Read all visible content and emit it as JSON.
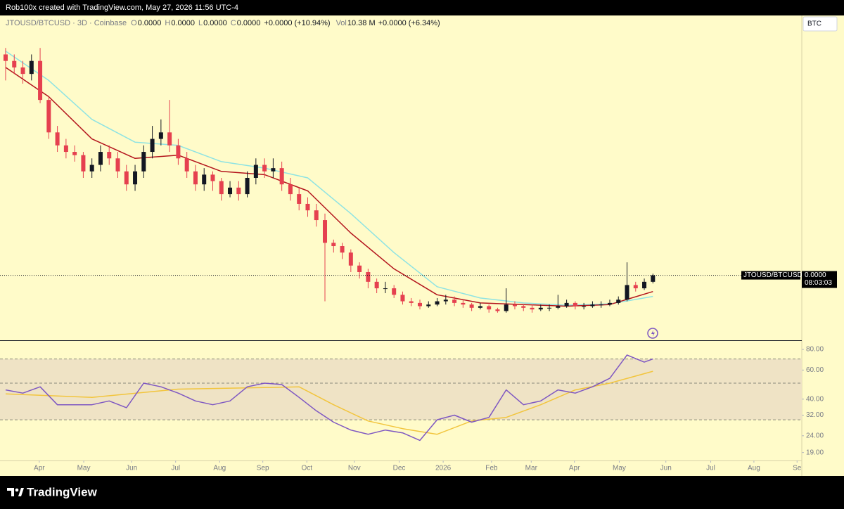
{
  "header": {
    "credit": "Rob100x created with TradingView.com, May 27, 2026 11:56 UTC-4"
  },
  "chart_data": [
    {
      "type": "candlestick",
      "title": "JTOUSD/BTCUSD · 3D · Coinbase",
      "ohlc_labels": [
        "O",
        "H",
        "L",
        "C"
      ],
      "ohlc_values": [
        "0.0000",
        "0.0000",
        "0.0000",
        "0.0000"
      ],
      "change": "+0.0000 (+10.94%)",
      "volume_label": "Vol",
      "volume": "10.38 M",
      "volume_change": "+0.0000 (+6.34%)",
      "currency": "BTC",
      "last_symbol": "JTOUSD/BTCUSD",
      "last_price": "0.0000",
      "countdown": "08:03:03",
      "up_color": "#131722",
      "down_color": "#e5404f",
      "xlim": [
        -0.65,
        92.25
      ],
      "ylim": [
        0,
        100
      ],
      "open": [
        88,
        86,
        84,
        82,
        86,
        74,
        64,
        60,
        58,
        57,
        52,
        54,
        58,
        56,
        52,
        48,
        52,
        58,
        62,
        64,
        60,
        56,
        52,
        48,
        51,
        49,
        45,
        47,
        45,
        50,
        54,
        52,
        53,
        48,
        45,
        42,
        40,
        37,
        30,
        29,
        27,
        23,
        21,
        18,
        16,
        16,
        14,
        12,
        11.5,
        10.5,
        11,
        12,
        12.5,
        11.5,
        11,
        10,
        10.5,
        9.5,
        9,
        11,
        10.5,
        10,
        9.5,
        10,
        10,
        10.5,
        11.5,
        10.5,
        10.5,
        11,
        11,
        11.5,
        12.5,
        17,
        16,
        18
      ],
      "high": [
        90,
        88,
        86,
        88,
        90,
        75,
        66,
        62,
        60,
        58,
        56,
        60,
        60,
        58,
        54,
        54,
        60,
        66,
        68,
        74,
        62,
        58,
        54,
        53,
        52,
        50,
        49,
        49,
        52,
        56,
        56,
        56,
        55,
        50,
        47,
        44,
        42,
        39,
        31,
        30,
        28,
        24,
        22,
        19,
        18,
        17,
        15,
        13,
        12.5,
        12,
        13,
        14,
        13.5,
        12.5,
        11.5,
        11.5,
        11,
        10,
        16,
        12,
        11,
        11,
        11,
        11,
        14,
        12.5,
        12,
        11.5,
        12,
        12,
        12.5,
        13.5,
        24,
        18,
        19,
        20.5
      ],
      "low": [
        80,
        82,
        79,
        80,
        73,
        62,
        58,
        56,
        55,
        50,
        50,
        52,
        54,
        50,
        46,
        46,
        50,
        56,
        60,
        58,
        54,
        50,
        46,
        46,
        46,
        43,
        44,
        43,
        44,
        48,
        50,
        50,
        46,
        43,
        40,
        38,
        35,
        12,
        27,
        25,
        21,
        19,
        16,
        14.5,
        14.5,
        13,
        11,
        10.5,
        9.5,
        10,
        10.5,
        11,
        10.5,
        10,
        9,
        9.5,
        8.5,
        8.5,
        8.5,
        9.5,
        9,
        8.5,
        9,
        9,
        9.5,
        10,
        9.5,
        9.5,
        10,
        10,
        10.5,
        11,
        12,
        15,
        15.5,
        17.5
      ],
      "close": [
        86,
        84,
        82,
        86,
        74,
        64,
        60,
        58,
        57,
        52,
        54,
        58,
        56,
        52,
        48,
        52,
        58,
        62,
        64,
        60,
        56,
        52,
        48,
        51,
        49,
        45,
        47,
        45,
        50,
        54,
        52,
        53,
        48,
        45,
        42,
        40,
        37,
        30,
        29,
        27,
        23,
        21,
        18,
        16,
        16,
        14,
        12,
        11.5,
        10.5,
        11,
        12,
        12.5,
        11.5,
        11,
        10,
        10.5,
        9.5,
        9,
        11,
        10.5,
        10,
        9.5,
        10,
        10,
        10.5,
        11.5,
        10.5,
        10.5,
        11,
        11,
        11.5,
        12.5,
        17,
        16,
        18,
        20
      ],
      "lines": [
        {
          "color": "#8ee3e3",
          "x": [
            0,
            5,
            10,
            15,
            20,
            25,
            30,
            35,
            40,
            45,
            50,
            55,
            60,
            65,
            70,
            75
          ],
          "values": [
            89,
            80,
            68,
            61,
            60,
            55,
            53,
            50,
            39,
            27,
            16.5,
            13,
            11.5,
            10.8,
            11.2,
            13.5
          ]
        },
        {
          "color": "#b3141c",
          "x": [
            0,
            5,
            10,
            15,
            20,
            25,
            30,
            35,
            40,
            45,
            50,
            55,
            60,
            65,
            70,
            75
          ],
          "values": [
            84,
            75,
            62,
            56,
            57,
            52,
            51,
            46,
            33,
            22,
            14,
            11.5,
            11,
            10.5,
            11,
            15
          ]
        }
      ]
    },
    {
      "type": "line",
      "log_scale": true,
      "xlim": [
        -0.65,
        92.25
      ],
      "ylim": [
        17,
        90
      ],
      "band": [
        30,
        70
      ],
      "mid_level": 50,
      "band_color": "#efe3c5",
      "yticks": [
        {
          "value": 80,
          "label": "80.00"
        },
        {
          "value": 60,
          "label": "60.00"
        },
        {
          "value": 40,
          "label": "40.00"
        },
        {
          "value": 32,
          "label": "32.00"
        },
        {
          "value": 24,
          "label": "24.00"
        },
        {
          "value": 19,
          "label": "19.00"
        }
      ],
      "xticks": [
        {
          "value": 3.9,
          "label": "Apr"
        },
        {
          "value": 9.05,
          "label": "May"
        },
        {
          "value": 14.6,
          "label": "Jun"
        },
        {
          "value": 19.7,
          "label": "Jul"
        },
        {
          "value": 24.8,
          "label": "Aug"
        },
        {
          "value": 29.8,
          "label": "Sep"
        },
        {
          "value": 34.9,
          "label": "Oct"
        },
        {
          "value": 40.4,
          "label": "Nov"
        },
        {
          "value": 45.6,
          "label": "Dec"
        },
        {
          "value": 50.7,
          "label": "2026"
        },
        {
          "value": 56.3,
          "label": "Feb"
        },
        {
          "value": 60.9,
          "label": "Mar"
        },
        {
          "value": 65.9,
          "label": "Apr"
        },
        {
          "value": 71.1,
          "label": "May"
        },
        {
          "value": 76.5,
          "label": "Jun"
        },
        {
          "value": 81.7,
          "label": "Jul"
        },
        {
          "value": 86.7,
          "label": "Aug"
        },
        {
          "value": 91.7,
          "label": "Se"
        }
      ],
      "series": [
        {
          "color": "#7e57c2",
          "x": [
            0,
            2,
            4,
            6,
            8,
            10,
            12,
            14,
            16,
            18,
            20,
            22,
            24,
            26,
            28,
            30,
            32,
            34,
            36,
            38,
            40,
            42,
            44,
            46,
            48,
            50,
            52,
            54,
            56,
            58,
            60,
            62,
            64,
            66,
            68,
            70,
            72,
            74,
            75
          ],
          "values": [
            45.5,
            43.5,
            47.5,
            37,
            37,
            37,
            39,
            35.5,
            50,
            47.5,
            43.5,
            39,
            37,
            39,
            47.5,
            50,
            49,
            41,
            34,
            29,
            26,
            24.5,
            26,
            25,
            22.5,
            30,
            32,
            29,
            31,
            45.5,
            37,
            39,
            45.5,
            43.5,
            47.5,
            53.5,
            74,
            67,
            70
          ]
        },
        {
          "color": "#f2c53d",
          "x": [
            0,
            10,
            20,
            30,
            34,
            38,
            42,
            46,
            50,
            54,
            58,
            62,
            66,
            70,
            75
          ],
          "values": [
            43,
            41,
            46,
            47,
            47.5,
            37,
            29.5,
            26.5,
            24.5,
            29.5,
            31,
            37,
            45.5,
            50,
            59
          ]
        }
      ]
    }
  ],
  "footer": {
    "brand": "TradingView"
  }
}
